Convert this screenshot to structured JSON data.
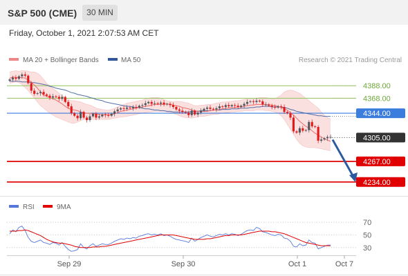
{
  "header": {
    "title": "S&P 500 (CME)",
    "interval": "30 MIN"
  },
  "timestamp": "Friday, October 1, 2021 2:07:53 AM CET",
  "colors": {
    "candle_up": "#55555c",
    "candle_down": "#e11a1a",
    "bb_fill": "#f9d6d6",
    "bb_line": "#f0a0a0",
    "ma20": "#ee6a6a",
    "ma50": "#33579a",
    "resistance": "#90c35a",
    "pivot": "#3b7ddd",
    "support": "#e00000",
    "current": "#333333",
    "rsi": "#5577dd",
    "rsi_ma": "#e00000",
    "arrow": "#2b5b9e",
    "grid": "#e6e6e6"
  },
  "chart_data": [
    {
      "type": "candlestick",
      "legend": [
        {
          "name": "MA 20 + Bollinger Bands",
          "color": "#ee8888"
        },
        {
          "name": "MA 50",
          "color": "#33579a"
        }
      ],
      "legend_placement": "top-left",
      "credit": "Research © 2021 Trading Central",
      "x_ticks": [
        "Sep 29",
        "Sep 30",
        "Oct 1",
        "Oct 7"
      ],
      "ylim": [
        4215,
        4418
      ],
      "levels": [
        {
          "value": 4388.0,
          "label": "4388.00",
          "kind": "resistance"
        },
        {
          "value": 4368.0,
          "label": "4368.00",
          "kind": "resistance"
        },
        {
          "value": 4344.0,
          "label": "4344.00",
          "kind": "pivot"
        },
        {
          "value": 4305.0,
          "label": "4305.00",
          "kind": "current"
        },
        {
          "value": 4267.0,
          "label": "4267.00",
          "kind": "support"
        },
        {
          "value": 4234.0,
          "label": "4234.00",
          "kind": "support"
        }
      ],
      "forecast_arrow": {
        "from": 4305,
        "to": 4236,
        "direction": "down"
      },
      "close": [
        4398,
        4401,
        4399,
        4403,
        4406,
        4404,
        4392,
        4380,
        4375,
        4376,
        4378,
        4374,
        4372,
        4369,
        4371,
        4370,
        4367,
        4370,
        4362,
        4355,
        4344,
        4340,
        4336,
        4346,
        4337,
        4333,
        4339,
        4343,
        4337,
        4339,
        4342,
        4341,
        4340,
        4343,
        4347,
        4350,
        4352,
        4351,
        4353,
        4352,
        4354,
        4353,
        4356,
        4357,
        4360,
        4362,
        4359,
        4360,
        4359,
        4361,
        4358,
        4359,
        4357,
        4354,
        4350,
        4348,
        4346,
        4345,
        4341,
        4348,
        4342,
        4345,
        4348,
        4351,
        4353,
        4351,
        4350,
        4352,
        4355,
        4354,
        4357,
        4355,
        4357,
        4356,
        4354,
        4356,
        4359,
        4362,
        4363,
        4362,
        4364,
        4363,
        4358,
        4358,
        4356,
        4354,
        4353,
        4355,
        4354,
        4346,
        4344,
        4337,
        4315,
        4313,
        4320,
        4316,
        4317,
        4330,
        4323,
        4322,
        4300,
        4302,
        4304,
        4306,
        4306
      ],
      "series": [
        {
          "name": "MA 20",
          "values": [
            4400,
            4402,
            4401,
            4401,
            4401,
            4400,
            4397,
            4394,
            4389,
            4384,
            4378,
            4373,
            4371,
            4369,
            4367,
            4365,
            4362,
            4359,
            4355,
            4352,
            4350,
            4349,
            4348,
            4346,
            4345,
            4344,
            4344,
            4343,
            4343,
            4342,
            4341,
            4342,
            4341,
            4342,
            4343,
            4345,
            4347,
            4348,
            4349,
            4350,
            4351,
            4352,
            4353,
            4354,
            4355,
            4356,
            4357,
            4358,
            4358,
            4358,
            4358,
            4359,
            4358,
            4357,
            4356,
            4355,
            4353,
            4352,
            4351,
            4349,
            4348,
            4347,
            4347,
            4347,
            4347,
            4348,
            4349,
            4349,
            4350,
            4351,
            4352,
            4352,
            4353,
            4353,
            4354,
            4354,
            4355,
            4356,
            4357,
            4357,
            4358,
            4358,
            4358,
            4358,
            4357,
            4357,
            4356,
            4355,
            4353,
            4351,
            4349,
            4345,
            4341,
            4336,
            4331,
            4327,
            4323,
            4320,
            4316,
            4312,
            4309,
            4306,
            4303,
            4301,
            4299
          ]
        },
        {
          "name": "MA 50",
          "values": [
            4395,
            4395,
            4395,
            4395,
            4394,
            4394,
            4394,
            4393,
            4393,
            4392,
            4391,
            4390,
            4389,
            4387,
            4386,
            4384,
            4383,
            4382,
            4381,
            4379,
            4377,
            4376,
            4374,
            4373,
            4372,
            4371,
            4369,
            4368,
            4366,
            4365,
            4364,
            4362,
            4361,
            4360,
            4359,
            4358,
            4357,
            4356,
            4355,
            4355,
            4354,
            4353,
            4353,
            4352,
            4351,
            4351,
            4350,
            4349,
            4349,
            4348,
            4348,
            4347,
            4347,
            4346,
            4346,
            4346,
            4346,
            4346,
            4346,
            4347,
            4347,
            4347,
            4348,
            4348,
            4348,
            4348,
            4349,
            4349,
            4349,
            4350,
            4350,
            4350,
            4351,
            4351,
            4351,
            4352,
            4352,
            4352,
            4353,
            4353,
            4354,
            4354,
            4355,
            4355,
            4355,
            4354,
            4354,
            4354,
            4354,
            4353,
            4352,
            4350,
            4349,
            4347,
            4346,
            4345,
            4344,
            4343,
            4342,
            4341,
            4340,
            4340,
            4339,
            4339,
            4339
          ]
        },
        {
          "name": "BB Upper",
          "values": [
            4410,
            4411,
            4412,
            4411,
            4412,
            4412,
            4411,
            4410,
            4410,
            4408,
            4404,
            4398,
            4392,
            4388,
            4384,
            4380,
            4376,
            4372,
            4368,
            4366,
            4364,
            4364,
            4363,
            4362,
            4360,
            4358,
            4357,
            4355,
            4352,
            4351,
            4350,
            4349,
            4349,
            4350,
            4352,
            4354,
            4356,
            4358,
            4360,
            4361,
            4362,
            4363,
            4364,
            4365,
            4367,
            4368,
            4369,
            4369,
            4369,
            4368,
            4366,
            4364,
            4363,
            4362,
            4363,
            4363,
            4362,
            4361,
            4360,
            4358,
            4356,
            4356,
            4357,
            4357,
            4358,
            4358,
            4359,
            4360,
            4361,
            4362,
            4362,
            4363,
            4363,
            4364,
            4364,
            4365,
            4366,
            4367,
            4368,
            4368,
            4368,
            4369,
            4369,
            4369,
            4368,
            4367,
            4367,
            4370,
            4373,
            4378,
            4380,
            4381,
            4380,
            4378,
            4376,
            4372,
            4368,
            4364,
            4360,
            4356,
            4352,
            4346,
            4341,
            4337,
            4335
          ]
        },
        {
          "name": "BB Lower",
          "values": [
            4392,
            4393,
            4394,
            4393,
            4390,
            4385,
            4380,
            4374,
            4368,
            4362,
            4356,
            4352,
            4348,
            4344,
            4341,
            4338,
            4336,
            4334,
            4332,
            4330,
            4328,
            4328,
            4330,
            4332,
            4334,
            4334,
            4334,
            4334,
            4334,
            4334,
            4334,
            4334,
            4334,
            4335,
            4336,
            4337,
            4338,
            4338,
            4339,
            4340,
            4341,
            4342,
            4343,
            4344,
            4345,
            4346,
            4346,
            4347,
            4347,
            4347,
            4347,
            4346,
            4345,
            4344,
            4342,
            4340,
            4338,
            4337,
            4337,
            4336,
            4337,
            4338,
            4339,
            4339,
            4340,
            4341,
            4342,
            4342,
            4343,
            4344,
            4345,
            4345,
            4346,
            4346,
            4347,
            4347,
            4348,
            4348,
            4348,
            4348,
            4349,
            4349,
            4349,
            4348,
            4348,
            4347,
            4346,
            4344,
            4340,
            4334,
            4326,
            4318,
            4310,
            4302,
            4296,
            4292,
            4290,
            4289,
            4289,
            4289,
            4288,
            4287,
            4286,
            4285,
            4284
          ]
        }
      ]
    },
    {
      "type": "line",
      "legend": [
        {
          "name": "RSI",
          "color": "#5577dd"
        },
        {
          "name": "9MA",
          "color": "#e00000"
        }
      ],
      "legend_placement": "top-left",
      "ylim": [
        20,
        80
      ],
      "y_ticks": [
        70,
        50,
        30
      ],
      "series": [
        {
          "name": "RSI",
          "values": [
            52,
            58,
            55,
            62,
            64,
            57,
            46,
            40,
            38,
            40,
            42,
            38,
            37,
            35,
            38,
            37,
            34,
            38,
            32,
            27,
            24,
            25,
            27,
            36,
            30,
            28,
            33,
            36,
            32,
            34,
            36,
            35,
            35,
            37,
            40,
            42,
            44,
            43,
            45,
            44,
            46,
            45,
            48,
            49,
            51,
            52,
            50,
            51,
            50,
            52,
            49,
            50,
            48,
            45,
            43,
            42,
            41,
            40,
            38,
            45,
            40,
            43,
            46,
            48,
            50,
            48,
            47,
            49,
            51,
            50,
            52,
            50,
            52,
            51,
            49,
            51,
            54,
            57,
            58,
            57,
            62,
            60,
            55,
            54,
            52,
            50,
            49,
            51,
            50,
            45,
            44,
            40,
            32,
            31,
            36,
            33,
            34,
            42,
            38,
            37,
            28,
            30,
            32,
            34,
            34
          ]
        },
        {
          "name": "9MA",
          "values": [
            56,
            56,
            56,
            57,
            57,
            58,
            57,
            55,
            53,
            51,
            49,
            46,
            43,
            41,
            39,
            38,
            37,
            37,
            36,
            35,
            34,
            32,
            31,
            30,
            30,
            30,
            30,
            31,
            31,
            31,
            32,
            32,
            33,
            34,
            35,
            36,
            37,
            38,
            39,
            40,
            41,
            42,
            43,
            44,
            45,
            46,
            47,
            48,
            49,
            50,
            50,
            50,
            50,
            50,
            49,
            48,
            47,
            46,
            45,
            44,
            43,
            43,
            43,
            43,
            44,
            44,
            45,
            46,
            47,
            48,
            49,
            49,
            50,
            50,
            50,
            50,
            51,
            52,
            53,
            54,
            55,
            56,
            56,
            56,
            56,
            55,
            55,
            54,
            53,
            52,
            50,
            48,
            46,
            44,
            42,
            40,
            38,
            37,
            36,
            35,
            34,
            33,
            33,
            33,
            33
          ]
        }
      ]
    }
  ]
}
